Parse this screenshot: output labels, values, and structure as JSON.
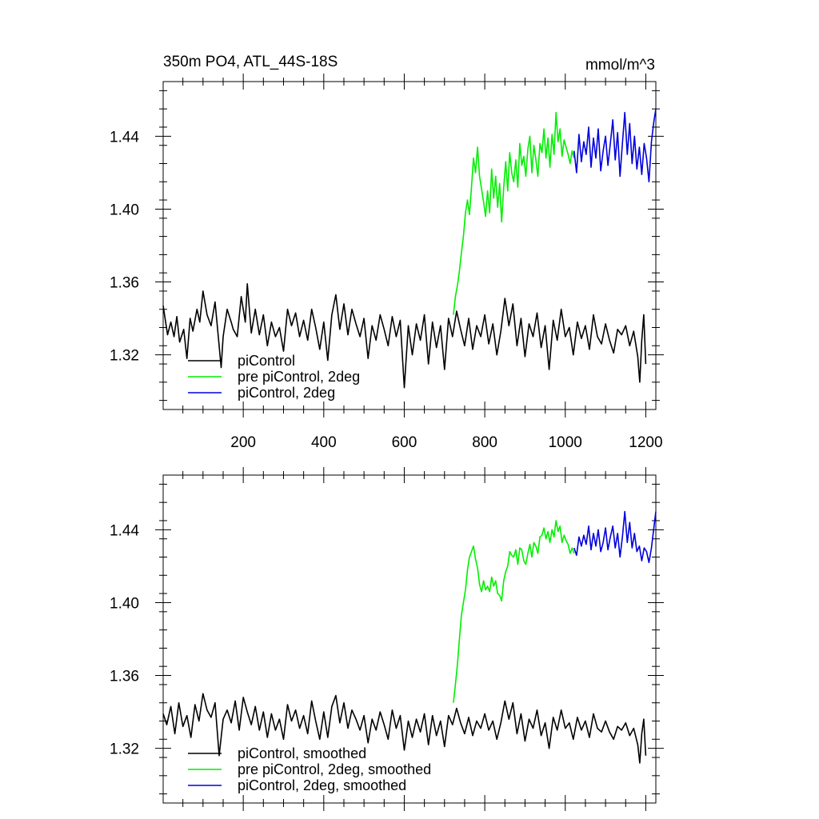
{
  "header": {
    "title": "350m PO4, ATL_44S-18S",
    "units": "mmol/m^3"
  },
  "colors": {
    "piControl": "#000000",
    "pre_piControl_2deg": "#00ee00",
    "piControl_2deg": "#0000dd"
  },
  "chart_data": [
    {
      "type": "line",
      "title": "350m PO4, ATL_44S-18S",
      "units": "mmol/m^3",
      "xlabel": "",
      "ylabel": "",
      "xlim": [
        1,
        1225
      ],
      "ylim": [
        1.29,
        1.47
      ],
      "x_ticks": [
        200,
        400,
        600,
        800,
        1000,
        1200
      ],
      "y_ticks": [
        1.32,
        1.36,
        1.4,
        1.44
      ],
      "x_tick_labels": [
        "200",
        "400",
        "600",
        "800",
        "1000",
        "1200"
      ],
      "y_tick_labels": [
        "1.32",
        "1.36",
        "1.40",
        "1.44"
      ],
      "legend_position": "bottom-left",
      "grid": false,
      "series": [
        {
          "name": "piControl",
          "color": "#000000",
          "x": [
            1,
            12,
            20,
            28,
            35,
            42,
            52,
            60,
            68,
            75,
            85,
            92,
            100,
            110,
            120,
            130,
            140,
            145,
            150,
            160,
            170,
            175,
            185,
            195,
            205,
            210,
            220,
            230,
            240,
            250,
            260,
            270,
            280,
            290,
            300,
            310,
            320,
            330,
            340,
            350,
            360,
            370,
            380,
            390,
            400,
            410,
            420,
            430,
            440,
            450,
            460,
            470,
            480,
            490,
            500,
            510,
            520,
            530,
            540,
            550,
            560,
            570,
            580,
            590,
            600,
            610,
            620,
            630,
            640,
            650,
            660,
            670,
            680,
            690,
            700,
            710,
            720,
            730,
            740,
            750,
            760,
            770,
            780,
            790,
            800,
            810,
            820,
            830,
            840,
            850,
            860,
            870,
            880,
            890,
            900,
            910,
            920,
            930,
            940,
            950,
            960,
            970,
            980,
            990,
            1000,
            1010,
            1020,
            1030,
            1040,
            1050,
            1060,
            1070,
            1080,
            1090,
            1100,
            1110,
            1120,
            1130,
            1140,
            1150,
            1160,
            1170,
            1180,
            1185,
            1190,
            1195,
            1200
          ],
          "y": [
            1.347,
            1.331,
            1.338,
            1.33,
            1.341,
            1.327,
            1.334,
            1.318,
            1.34,
            1.333,
            1.345,
            1.338,
            1.355,
            1.342,
            1.336,
            1.349,
            1.325,
            1.313,
            1.33,
            1.345,
            1.338,
            1.334,
            1.33,
            1.352,
            1.338,
            1.359,
            1.332,
            1.345,
            1.331,
            1.342,
            1.325,
            1.338,
            1.33,
            1.335,
            1.322,
            1.345,
            1.336,
            1.343,
            1.33,
            1.339,
            1.328,
            1.345,
            1.335,
            1.323,
            1.338,
            1.317,
            1.342,
            1.353,
            1.334,
            1.348,
            1.331,
            1.345,
            1.337,
            1.33,
            1.34,
            1.318,
            1.336,
            1.328,
            1.342,
            1.334,
            1.325,
            1.341,
            1.33,
            1.339,
            1.302,
            1.336,
            1.32,
            1.337,
            1.328,
            1.342,
            1.315,
            1.338,
            1.324,
            1.336,
            1.312,
            1.34,
            1.33,
            1.344,
            1.334,
            1.325,
            1.34,
            1.323,
            1.336,
            1.33,
            1.342,
            1.326,
            1.337,
            1.32,
            1.333,
            1.351,
            1.336,
            1.348,
            1.325,
            1.34,
            1.319,
            1.337,
            1.33,
            1.343,
            1.324,
            1.336,
            1.312,
            1.339,
            1.328,
            1.345,
            1.33,
            1.335,
            1.32,
            1.338,
            1.329,
            1.336,
            1.323,
            1.342,
            1.33,
            1.326,
            1.337,
            1.328,
            1.321,
            1.334,
            1.331,
            1.336,
            1.325,
            1.333,
            1.319,
            1.305,
            1.328,
            1.342,
            1.315
          ]
        },
        {
          "name": "pre piControl, 2deg",
          "color": "#00ee00",
          "x": [
            722,
            727,
            732,
            737,
            742,
            747,
            752,
            757,
            762,
            767,
            772,
            777,
            782,
            787,
            792,
            797,
            802,
            807,
            812,
            817,
            822,
            827,
            832,
            837,
            842,
            847,
            852,
            857,
            862,
            867,
            872,
            877,
            882,
            887,
            892,
            897,
            902,
            907,
            912,
            917,
            922,
            927,
            932,
            937,
            942,
            947,
            952,
            957,
            962,
            967,
            972,
            977,
            982,
            987,
            992,
            997,
            1002,
            1007,
            1012,
            1017,
            1022
          ],
          "y": [
            1.342,
            1.352,
            1.358,
            1.366,
            1.376,
            1.385,
            1.398,
            1.405,
            1.397,
            1.412,
            1.428,
            1.42,
            1.434,
            1.418,
            1.411,
            1.404,
            1.396,
            1.41,
            1.398,
            1.422,
            1.406,
            1.418,
            1.401,
            1.414,
            1.393,
            1.412,
            1.426,
            1.41,
            1.431,
            1.42,
            1.415,
            1.427,
            1.412,
            1.436,
            1.424,
            1.429,
            1.418,
            1.433,
            1.44,
            1.42,
            1.435,
            1.427,
            1.418,
            1.436,
            1.431,
            1.444,
            1.428,
            1.439,
            1.423,
            1.441,
            1.43,
            1.453,
            1.437,
            1.444,
            1.429,
            1.438,
            1.434,
            1.43,
            1.425,
            1.432,
            1.428
          ]
        },
        {
          "name": "piControl, 2deg",
          "color": "#0000dd",
          "x": [
            1022,
            1028,
            1034,
            1040,
            1046,
            1052,
            1058,
            1064,
            1070,
            1076,
            1082,
            1088,
            1094,
            1100,
            1106,
            1112,
            1118,
            1124,
            1130,
            1136,
            1142,
            1148,
            1154,
            1160,
            1166,
            1172,
            1178,
            1184,
            1190,
            1196,
            1202,
            1208,
            1214,
            1220,
            1225
          ],
          "y": [
            1.432,
            1.42,
            1.441,
            1.426,
            1.437,
            1.43,
            1.445,
            1.423,
            1.439,
            1.428,
            1.444,
            1.421,
            1.432,
            1.44,
            1.424,
            1.436,
            1.449,
            1.427,
            1.442,
            1.418,
            1.436,
            1.453,
            1.43,
            1.447,
            1.425,
            1.44,
            1.422,
            1.434,
            1.419,
            1.436,
            1.428,
            1.415,
            1.437,
            1.448,
            1.455
          ]
        }
      ]
    },
    {
      "type": "line",
      "title": "",
      "xlabel": "",
      "ylabel": "",
      "xlim": [
        1,
        1225
      ],
      "ylim": [
        1.29,
        1.47
      ],
      "x_ticks": [
        200,
        400,
        600,
        800,
        1000,
        1200
      ],
      "y_ticks": [
        1.32,
        1.36,
        1.4,
        1.44
      ],
      "x_tick_labels": [],
      "y_tick_labels": [
        "1.32",
        "1.36",
        "1.40",
        "1.44"
      ],
      "legend_position": "bottom-left",
      "grid": false,
      "series": [
        {
          "name": "piControl, smoothed",
          "color": "#000000",
          "x": [
            1,
            10,
            20,
            30,
            40,
            50,
            60,
            70,
            80,
            90,
            100,
            110,
            120,
            130,
            140,
            150,
            160,
            170,
            180,
            190,
            200,
            210,
            220,
            230,
            240,
            250,
            260,
            270,
            280,
            290,
            300,
            310,
            320,
            330,
            340,
            350,
            360,
            370,
            380,
            390,
            400,
            410,
            420,
            430,
            440,
            450,
            460,
            470,
            480,
            490,
            500,
            510,
            520,
            530,
            540,
            550,
            560,
            570,
            580,
            590,
            600,
            610,
            620,
            630,
            640,
            650,
            660,
            670,
            680,
            690,
            700,
            710,
            720,
            730,
            740,
            750,
            760,
            770,
            780,
            790,
            800,
            810,
            820,
            830,
            840,
            850,
            860,
            870,
            880,
            890,
            900,
            910,
            920,
            930,
            940,
            950,
            960,
            970,
            980,
            990,
            1000,
            1010,
            1020,
            1030,
            1040,
            1050,
            1060,
            1070,
            1080,
            1090,
            1100,
            1110,
            1120,
            1130,
            1140,
            1150,
            1160,
            1170,
            1180,
            1185,
            1190,
            1195,
            1200
          ],
          "y": [
            1.339,
            1.333,
            1.343,
            1.328,
            1.345,
            1.332,
            1.338,
            1.326,
            1.344,
            1.335,
            1.35,
            1.341,
            1.337,
            1.345,
            1.316,
            1.336,
            1.341,
            1.334,
            1.346,
            1.33,
            1.348,
            1.34,
            1.333,
            1.343,
            1.33,
            1.34,
            1.326,
            1.339,
            1.33,
            1.336,
            1.325,
            1.344,
            1.335,
            1.341,
            1.331,
            1.338,
            1.328,
            1.346,
            1.335,
            1.325,
            1.34,
            1.326,
            1.343,
            1.349,
            1.334,
            1.345,
            1.331,
            1.341,
            1.336,
            1.33,
            1.338,
            1.323,
            1.336,
            1.33,
            1.34,
            1.333,
            1.325,
            1.341,
            1.331,
            1.338,
            1.319,
            1.335,
            1.326,
            1.336,
            1.329,
            1.339,
            1.322,
            1.338,
            1.327,
            1.335,
            1.321,
            1.338,
            1.333,
            1.342,
            1.334,
            1.328,
            1.337,
            1.327,
            1.335,
            1.331,
            1.339,
            1.33,
            1.335,
            1.325,
            1.334,
            1.346,
            1.336,
            1.345,
            1.328,
            1.339,
            1.324,
            1.336,
            1.331,
            1.341,
            1.327,
            1.334,
            1.32,
            1.337,
            1.33,
            1.341,
            1.331,
            1.334,
            1.325,
            1.337,
            1.33,
            1.335,
            1.326,
            1.339,
            1.331,
            1.329,
            1.335,
            1.329,
            1.325,
            1.332,
            1.33,
            1.334,
            1.327,
            1.331,
            1.322,
            1.312,
            1.328,
            1.336,
            1.316
          ]
        },
        {
          "name": "pre piControl, 2deg, smoothed",
          "color": "#00ee00",
          "x": [
            722,
            727,
            732,
            737,
            742,
            747,
            752,
            757,
            762,
            767,
            772,
            777,
            782,
            787,
            792,
            797,
            802,
            807,
            812,
            817,
            822,
            827,
            832,
            837,
            842,
            847,
            852,
            857,
            862,
            867,
            872,
            877,
            882,
            887,
            892,
            897,
            902,
            907,
            912,
            917,
            922,
            927,
            932,
            937,
            942,
            947,
            952,
            957,
            962,
            967,
            972,
            977,
            982,
            987,
            992,
            997,
            1002,
            1007,
            1012,
            1017,
            1022
          ],
          "y": [
            1.345,
            1.355,
            1.366,
            1.38,
            1.393,
            1.4,
            1.407,
            1.418,
            1.425,
            1.428,
            1.431,
            1.424,
            1.419,
            1.41,
            1.406,
            1.412,
            1.407,
            1.409,
            1.406,
            1.414,
            1.409,
            1.412,
            1.405,
            1.404,
            1.401,
            1.412,
            1.417,
            1.42,
            1.428,
            1.426,
            1.425,
            1.429,
            1.421,
            1.43,
            1.429,
            1.423,
            1.421,
            1.427,
            1.432,
            1.425,
            1.433,
            1.431,
            1.427,
            1.436,
            1.437,
            1.441,
            1.435,
            1.439,
            1.433,
            1.44,
            1.436,
            1.445,
            1.439,
            1.442,
            1.433,
            1.437,
            1.434,
            1.432,
            1.427,
            1.43,
            1.427
          ]
        },
        {
          "name": "piControl, 2deg, smoothed",
          "color": "#0000dd",
          "x": [
            1022,
            1028,
            1034,
            1040,
            1046,
            1052,
            1058,
            1064,
            1070,
            1076,
            1082,
            1088,
            1094,
            1100,
            1106,
            1112,
            1118,
            1124,
            1130,
            1136,
            1142,
            1148,
            1154,
            1160,
            1166,
            1172,
            1178,
            1184,
            1190,
            1196,
            1202,
            1208,
            1214,
            1220,
            1225
          ],
          "y": [
            1.43,
            1.426,
            1.436,
            1.431,
            1.437,
            1.432,
            1.442,
            1.429,
            1.438,
            1.431,
            1.44,
            1.428,
            1.433,
            1.441,
            1.429,
            1.436,
            1.442,
            1.43,
            1.438,
            1.425,
            1.436,
            1.45,
            1.433,
            1.444,
            1.43,
            1.438,
            1.428,
            1.431,
            1.423,
            1.43,
            1.428,
            1.422,
            1.43,
            1.441,
            1.45
          ]
        }
      ]
    }
  ]
}
